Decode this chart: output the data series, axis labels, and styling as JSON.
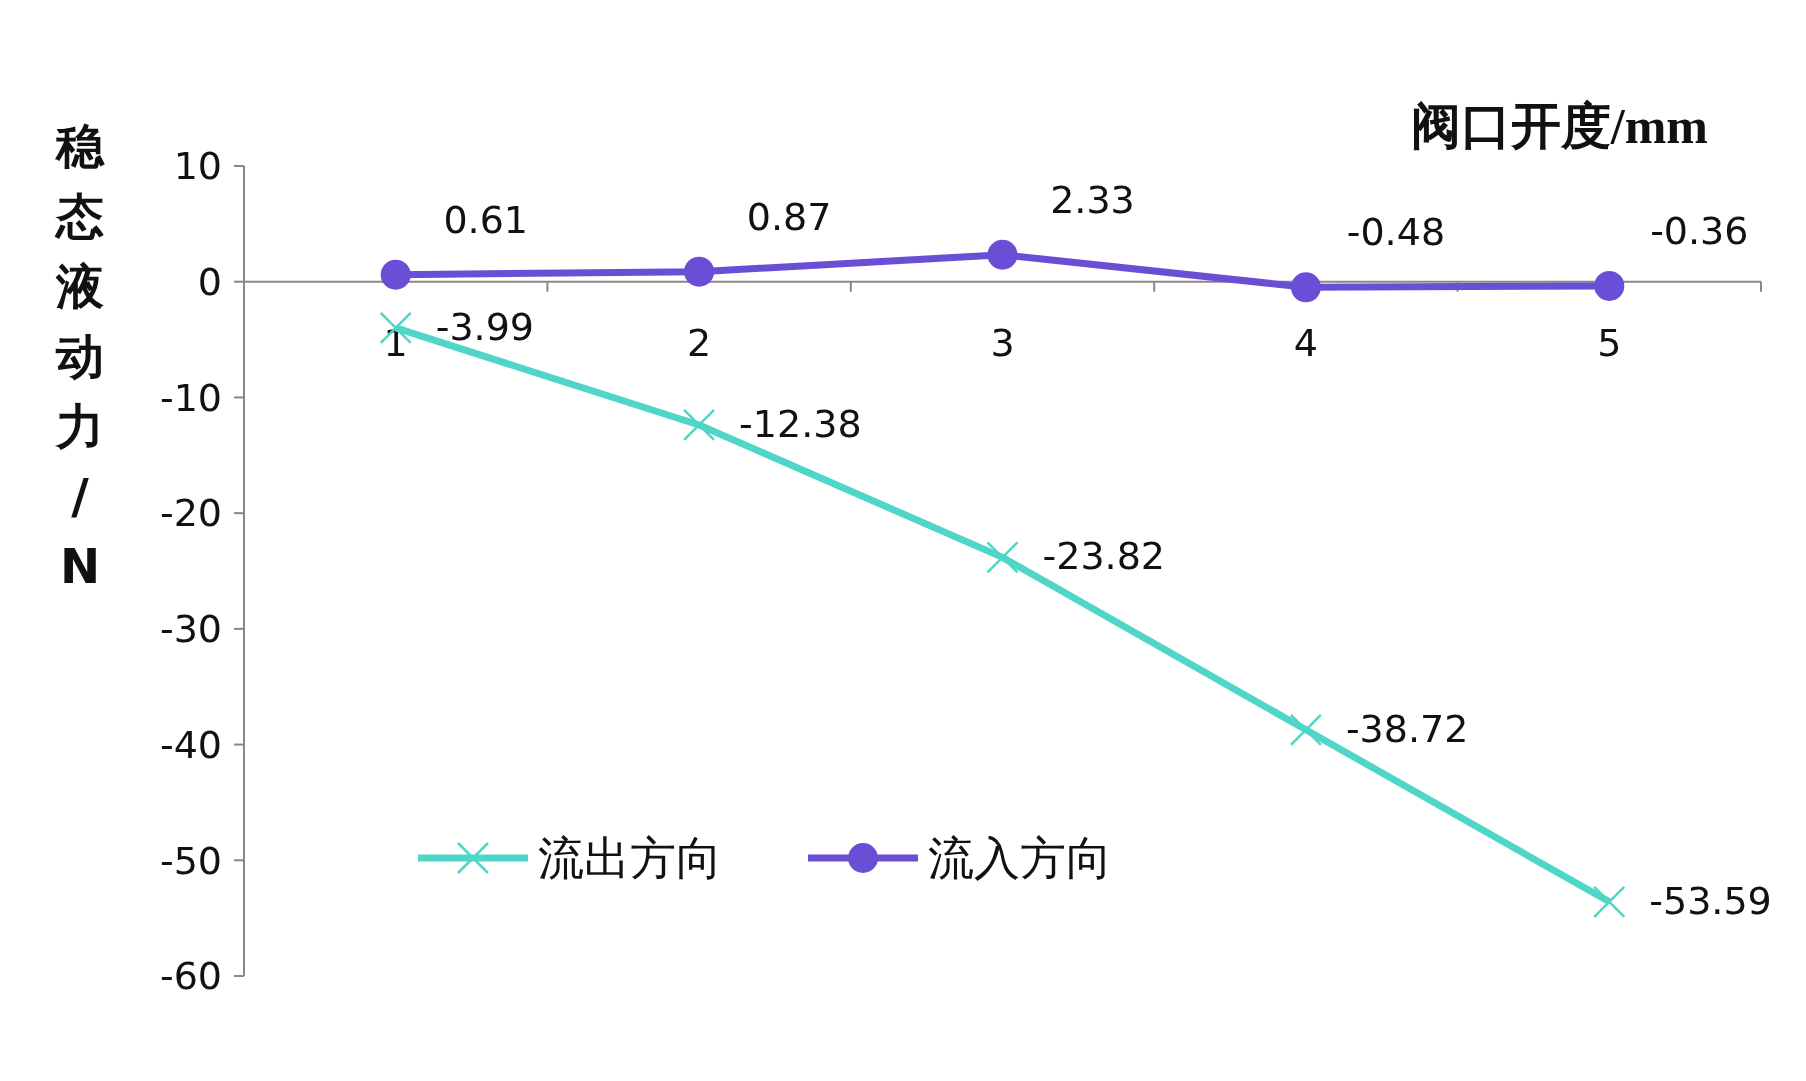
{
  "chart_data": {
    "type": "line",
    "xlabel": "阀口开度/mm",
    "ylabel": "稳态液动力/N",
    "categories": [
      "1",
      "2",
      "3",
      "4",
      "5"
    ],
    "series": [
      {
        "name": "流出方向",
        "color": "#4fd6c6",
        "marker": "cross",
        "values": [
          -3.99,
          -12.38,
          -23.82,
          -38.72,
          -53.59
        ]
      },
      {
        "name": "流入方向",
        "color": "#6a4fd6",
        "marker": "circle",
        "values": [
          0.61,
          0.87,
          2.33,
          -0.48,
          -0.36
        ]
      }
    ],
    "ylim": [
      -60,
      10
    ],
    "yticks": [
      -60,
      -50,
      -40,
      -30,
      -20,
      -10,
      0,
      10
    ],
    "data_labels": true,
    "legend": "bottom left",
    "grid": false
  }
}
